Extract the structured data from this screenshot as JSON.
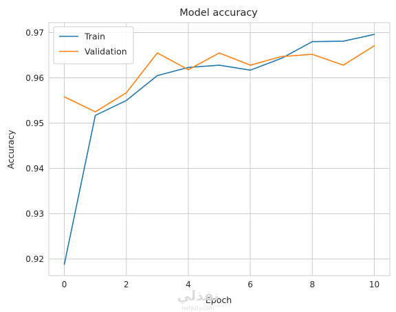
{
  "chart_data": {
    "type": "line",
    "title": "Model accuracy",
    "xlabel": "Epoch",
    "ylabel": "Accuracy",
    "x": [
      0,
      1,
      2,
      3,
      4,
      5,
      6,
      7,
      8,
      9,
      10
    ],
    "xticks": [
      0,
      2,
      4,
      6,
      8,
      10
    ],
    "yticks": [
      0.92,
      0.93,
      0.94,
      0.95,
      0.96,
      0.97
    ],
    "xlim": [
      -0.5,
      10.5
    ],
    "ylim": [
      0.9163,
      0.9722
    ],
    "grid": true,
    "legend_position": "upper-left",
    "series": [
      {
        "name": "Train",
        "color": "#1f77b4",
        "values": [
          0.9188,
          0.9517,
          0.955,
          0.9605,
          0.9623,
          0.9628,
          0.9617,
          0.9643,
          0.968,
          0.9681,
          0.9696
        ]
      },
      {
        "name": "Validation",
        "color": "#ff7f0e",
        "values": [
          0.9558,
          0.9525,
          0.9567,
          0.9655,
          0.9618,
          0.9655,
          0.9628,
          0.9647,
          0.9652,
          0.9628,
          0.9671
        ]
      }
    ]
  },
  "watermark": {
    "main": "نفذلي",
    "sub": "nafezly.com"
  }
}
